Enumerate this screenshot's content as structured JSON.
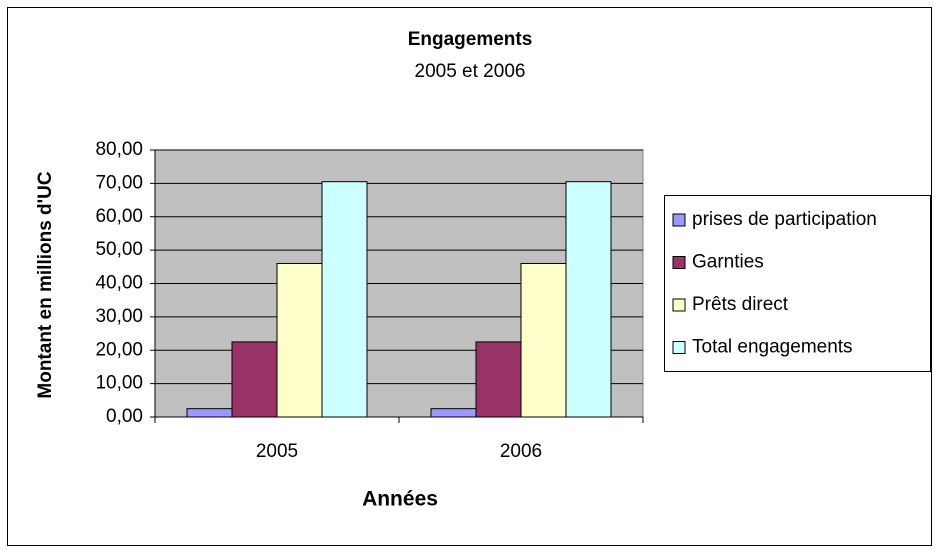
{
  "chart_data": {
    "type": "bar",
    "title": "Engagements",
    "subtitle": "2005 et 2006",
    "x_label": "Années",
    "y_label": "Montant en millions d'UC",
    "categories": [
      "2005",
      "2006"
    ],
    "series": [
      {
        "name": "prises de participation",
        "color": "#9999ff",
        "values": [
          2.5,
          2.5
        ]
      },
      {
        "name": "Garnties",
        "color": "#993366",
        "values": [
          22.5,
          22.5
        ]
      },
      {
        "name": "Prêts direct",
        "color": "#ffffcc",
        "values": [
          46,
          46
        ]
      },
      {
        "name": "Total engagements",
        "color": "#ccffff",
        "values": [
          70.5,
          70.5
        ]
      }
    ],
    "ylim": [
      0,
      80
    ],
    "yticks": [
      {
        "value": 0,
        "label": "0,00"
      },
      {
        "value": 10,
        "label": "10,00"
      },
      {
        "value": 20,
        "label": "20,00"
      },
      {
        "value": 30,
        "label": "30,00"
      },
      {
        "value": 40,
        "label": "40,00"
      },
      {
        "value": 50,
        "label": "50,00"
      },
      {
        "value": 60,
        "label": "60,00"
      },
      {
        "value": 70,
        "label": "70,00"
      },
      {
        "value": 80,
        "label": "80,00"
      }
    ],
    "grid": true,
    "legend": "right",
    "plot_background": "#c0c0c0"
  }
}
